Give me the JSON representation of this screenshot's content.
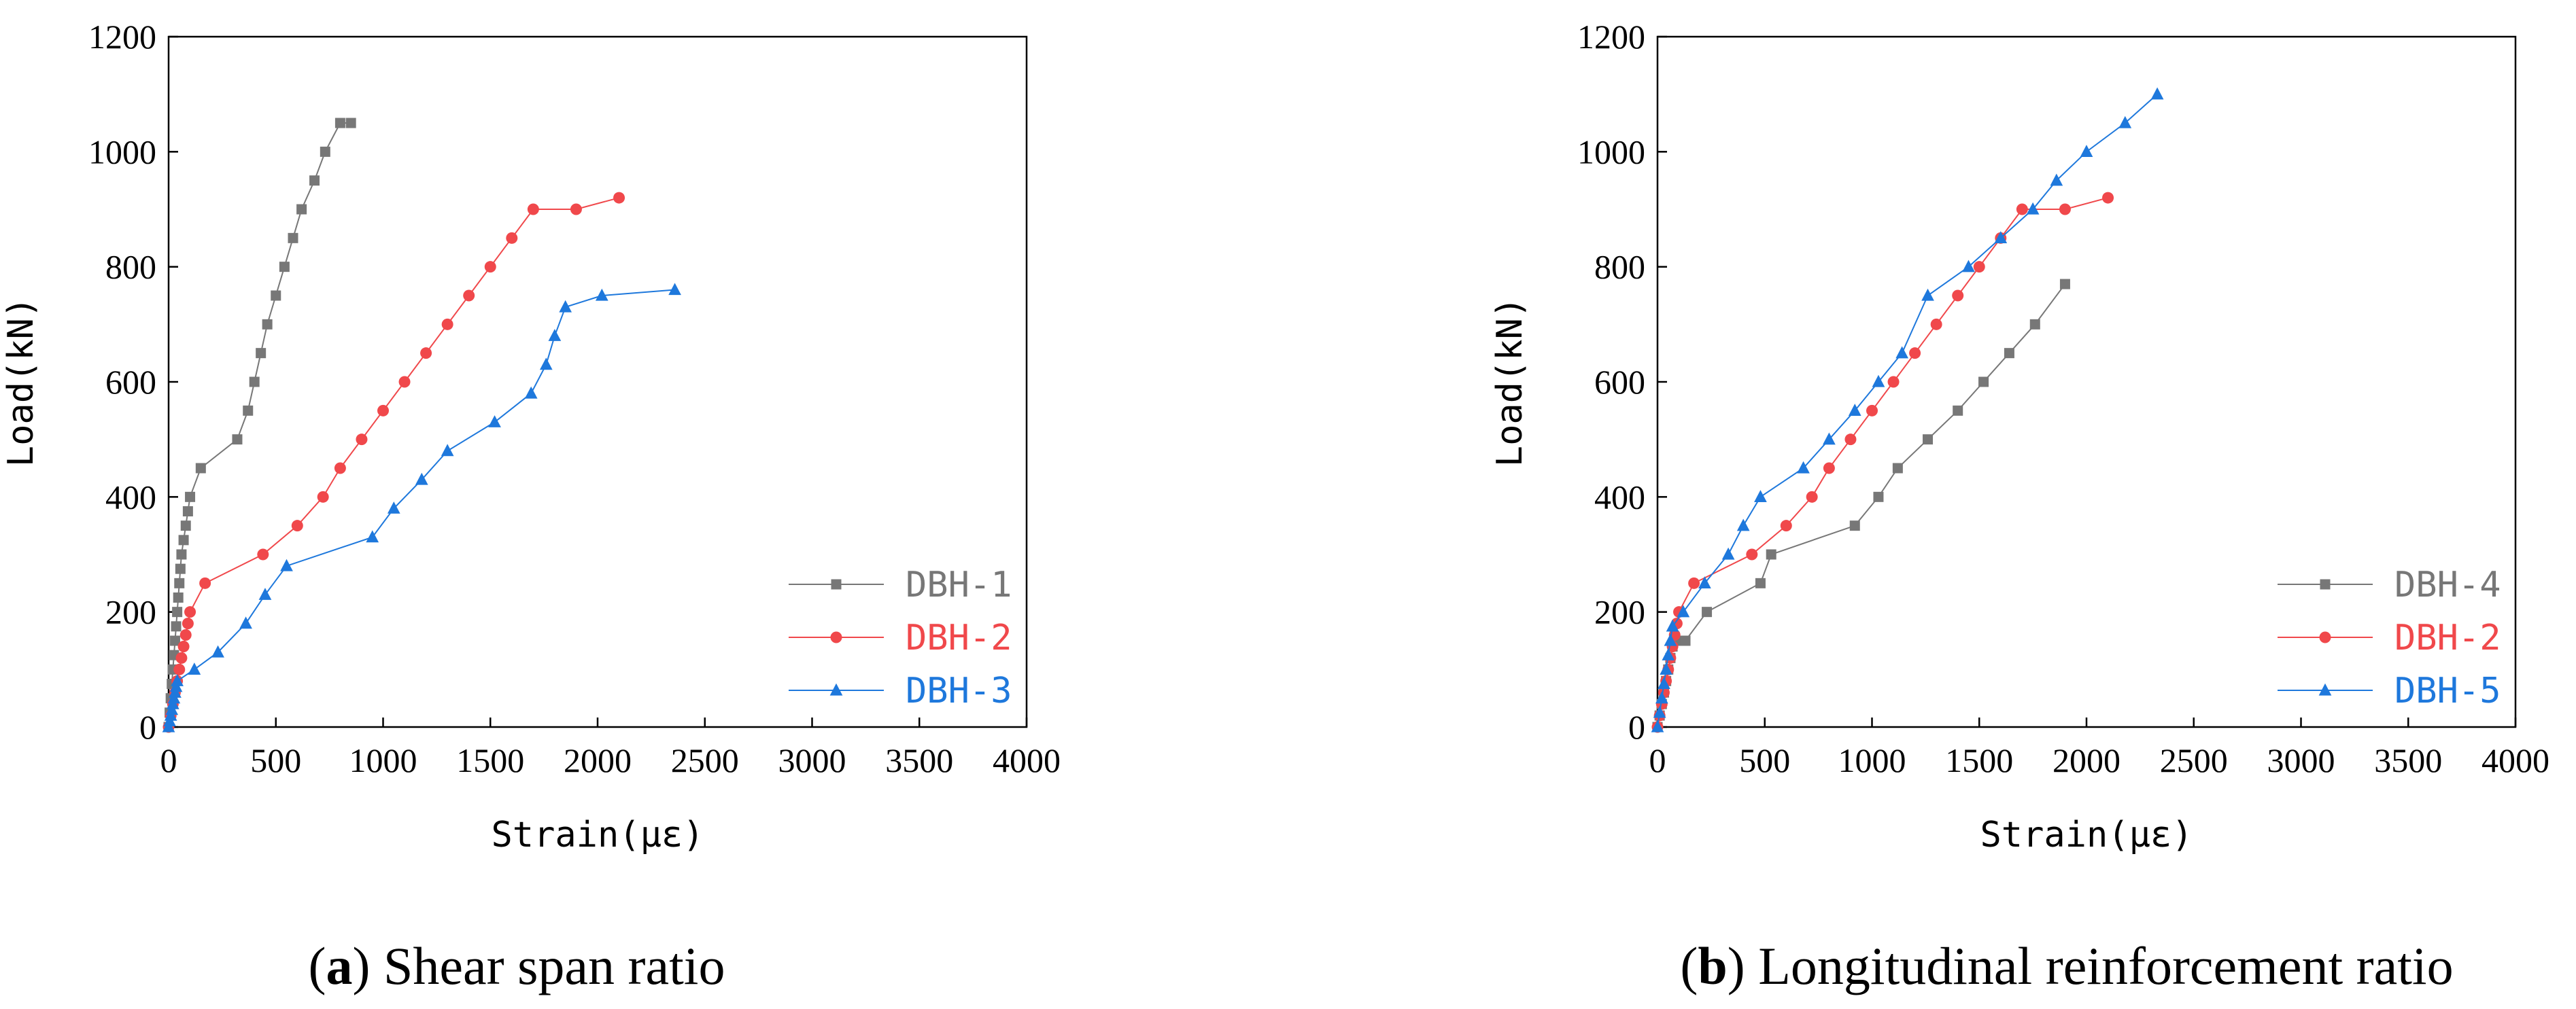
{
  "charts": [
    {
      "caption_letter": "a",
      "caption_text": "Shear span ratio"
    },
    {
      "caption_letter": "b",
      "caption_text": "Longitudinal reinforcement ratio"
    }
  ],
  "chart_data": [
    {
      "type": "line",
      "title": "",
      "xlabel": "Strain(με)",
      "ylabel": "Load(kN)",
      "xlim": [
        0,
        4000
      ],
      "ylim": [
        0,
        1200
      ],
      "xticks": [
        0,
        500,
        1000,
        1500,
        2000,
        2500,
        3000,
        3500,
        4000
      ],
      "yticks": [
        0,
        200,
        400,
        600,
        800,
        1000,
        1200
      ],
      "legend_position": "bottom-right",
      "series": [
        {
          "name": "DBH-1",
          "color": "#777777",
          "marker": "square",
          "x": [
            0,
            5,
            10,
            15,
            20,
            25,
            30,
            35,
            40,
            45,
            50,
            55,
            60,
            70,
            80,
            90,
            100,
            150,
            320,
            370,
            400,
            430,
            460,
            500,
            540,
            580,
            620,
            680,
            730,
            800,
            850
          ],
          "y": [
            0,
            25,
            50,
            75,
            100,
            125,
            150,
            175,
            200,
            225,
            250,
            275,
            300,
            325,
            350,
            375,
            400,
            450,
            500,
            550,
            600,
            650,
            700,
            750,
            800,
            850,
            900,
            950,
            1000,
            1050,
            1050
          ]
        },
        {
          "name": "DBH-2",
          "color": "#f0484b",
          "marker": "circle",
          "x": [
            0,
            10,
            20,
            30,
            40,
            50,
            60,
            70,
            80,
            90,
            100,
            170,
            440,
            600,
            720,
            800,
            900,
            1000,
            1100,
            1200,
            1300,
            1400,
            1500,
            1600,
            1700,
            1900,
            2100
          ],
          "y": [
            0,
            20,
            40,
            60,
            80,
            100,
            120,
            140,
            160,
            180,
            200,
            250,
            300,
            350,
            400,
            450,
            500,
            550,
            600,
            650,
            700,
            750,
            800,
            850,
            900,
            900,
            920
          ]
        },
        {
          "name": "DBH-3",
          "color": "#1e78dc",
          "marker": "triangle",
          "x": [
            0,
            5,
            10,
            15,
            20,
            25,
            30,
            35,
            40,
            120,
            230,
            360,
            450,
            550,
            950,
            1050,
            1180,
            1300,
            1520,
            1690,
            1760,
            1800,
            1850,
            2020,
            2360
          ],
          "y": [
            0,
            10,
            20,
            30,
            40,
            50,
            60,
            70,
            80,
            100,
            130,
            180,
            230,
            280,
            330,
            380,
            430,
            480,
            530,
            580,
            630,
            680,
            730,
            750,
            760
          ]
        }
      ]
    },
    {
      "type": "line",
      "title": "",
      "xlabel": "Strain(με)",
      "ylabel": "Load(kN)",
      "xlim": [
        0,
        4000
      ],
      "ylim": [
        0,
        1200
      ],
      "xticks": [
        0,
        500,
        1000,
        1500,
        2000,
        2500,
        3000,
        3500,
        4000
      ],
      "yticks": [
        0,
        200,
        400,
        600,
        800,
        1000,
        1200
      ],
      "legend_position": "bottom-right",
      "series": [
        {
          "name": "DBH-4",
          "color": "#777777",
          "marker": "square",
          "x": [
            0,
            10,
            20,
            30,
            40,
            50,
            60,
            70,
            90,
            130,
            230,
            480,
            530,
            920,
            1030,
            1120,
            1260,
            1400,
            1520,
            1640,
            1760,
            1900
          ],
          "y": [
            0,
            20,
            40,
            60,
            80,
            100,
            120,
            140,
            150,
            150,
            200,
            250,
            300,
            350,
            400,
            450,
            500,
            550,
            600,
            650,
            700,
            770
          ]
        },
        {
          "name": "DBH-2",
          "color": "#f0484b",
          "marker": "circle",
          "x": [
            0,
            10,
            20,
            30,
            40,
            50,
            60,
            70,
            80,
            90,
            100,
            170,
            440,
            600,
            720,
            800,
            900,
            1000,
            1100,
            1200,
            1300,
            1400,
            1500,
            1600,
            1700,
            1900,
            2100
          ],
          "y": [
            0,
            20,
            40,
            60,
            80,
            100,
            120,
            140,
            160,
            180,
            200,
            250,
            300,
            350,
            400,
            450,
            500,
            550,
            600,
            650,
            700,
            750,
            800,
            850,
            900,
            900,
            920
          ]
        },
        {
          "name": "DBH-5",
          "color": "#1e78dc",
          "marker": "triangle",
          "x": [
            0,
            10,
            20,
            30,
            40,
            50,
            60,
            70,
            120,
            220,
            330,
            400,
            480,
            680,
            800,
            920,
            1030,
            1140,
            1260,
            1450,
            1600,
            1750,
            1860,
            2000,
            2180,
            2330
          ],
          "y": [
            0,
            25,
            50,
            75,
            100,
            125,
            150,
            175,
            200,
            250,
            300,
            350,
            400,
            450,
            500,
            550,
            600,
            650,
            750,
            800,
            850,
            900,
            950,
            1000,
            1050,
            1100
          ]
        }
      ]
    }
  ]
}
